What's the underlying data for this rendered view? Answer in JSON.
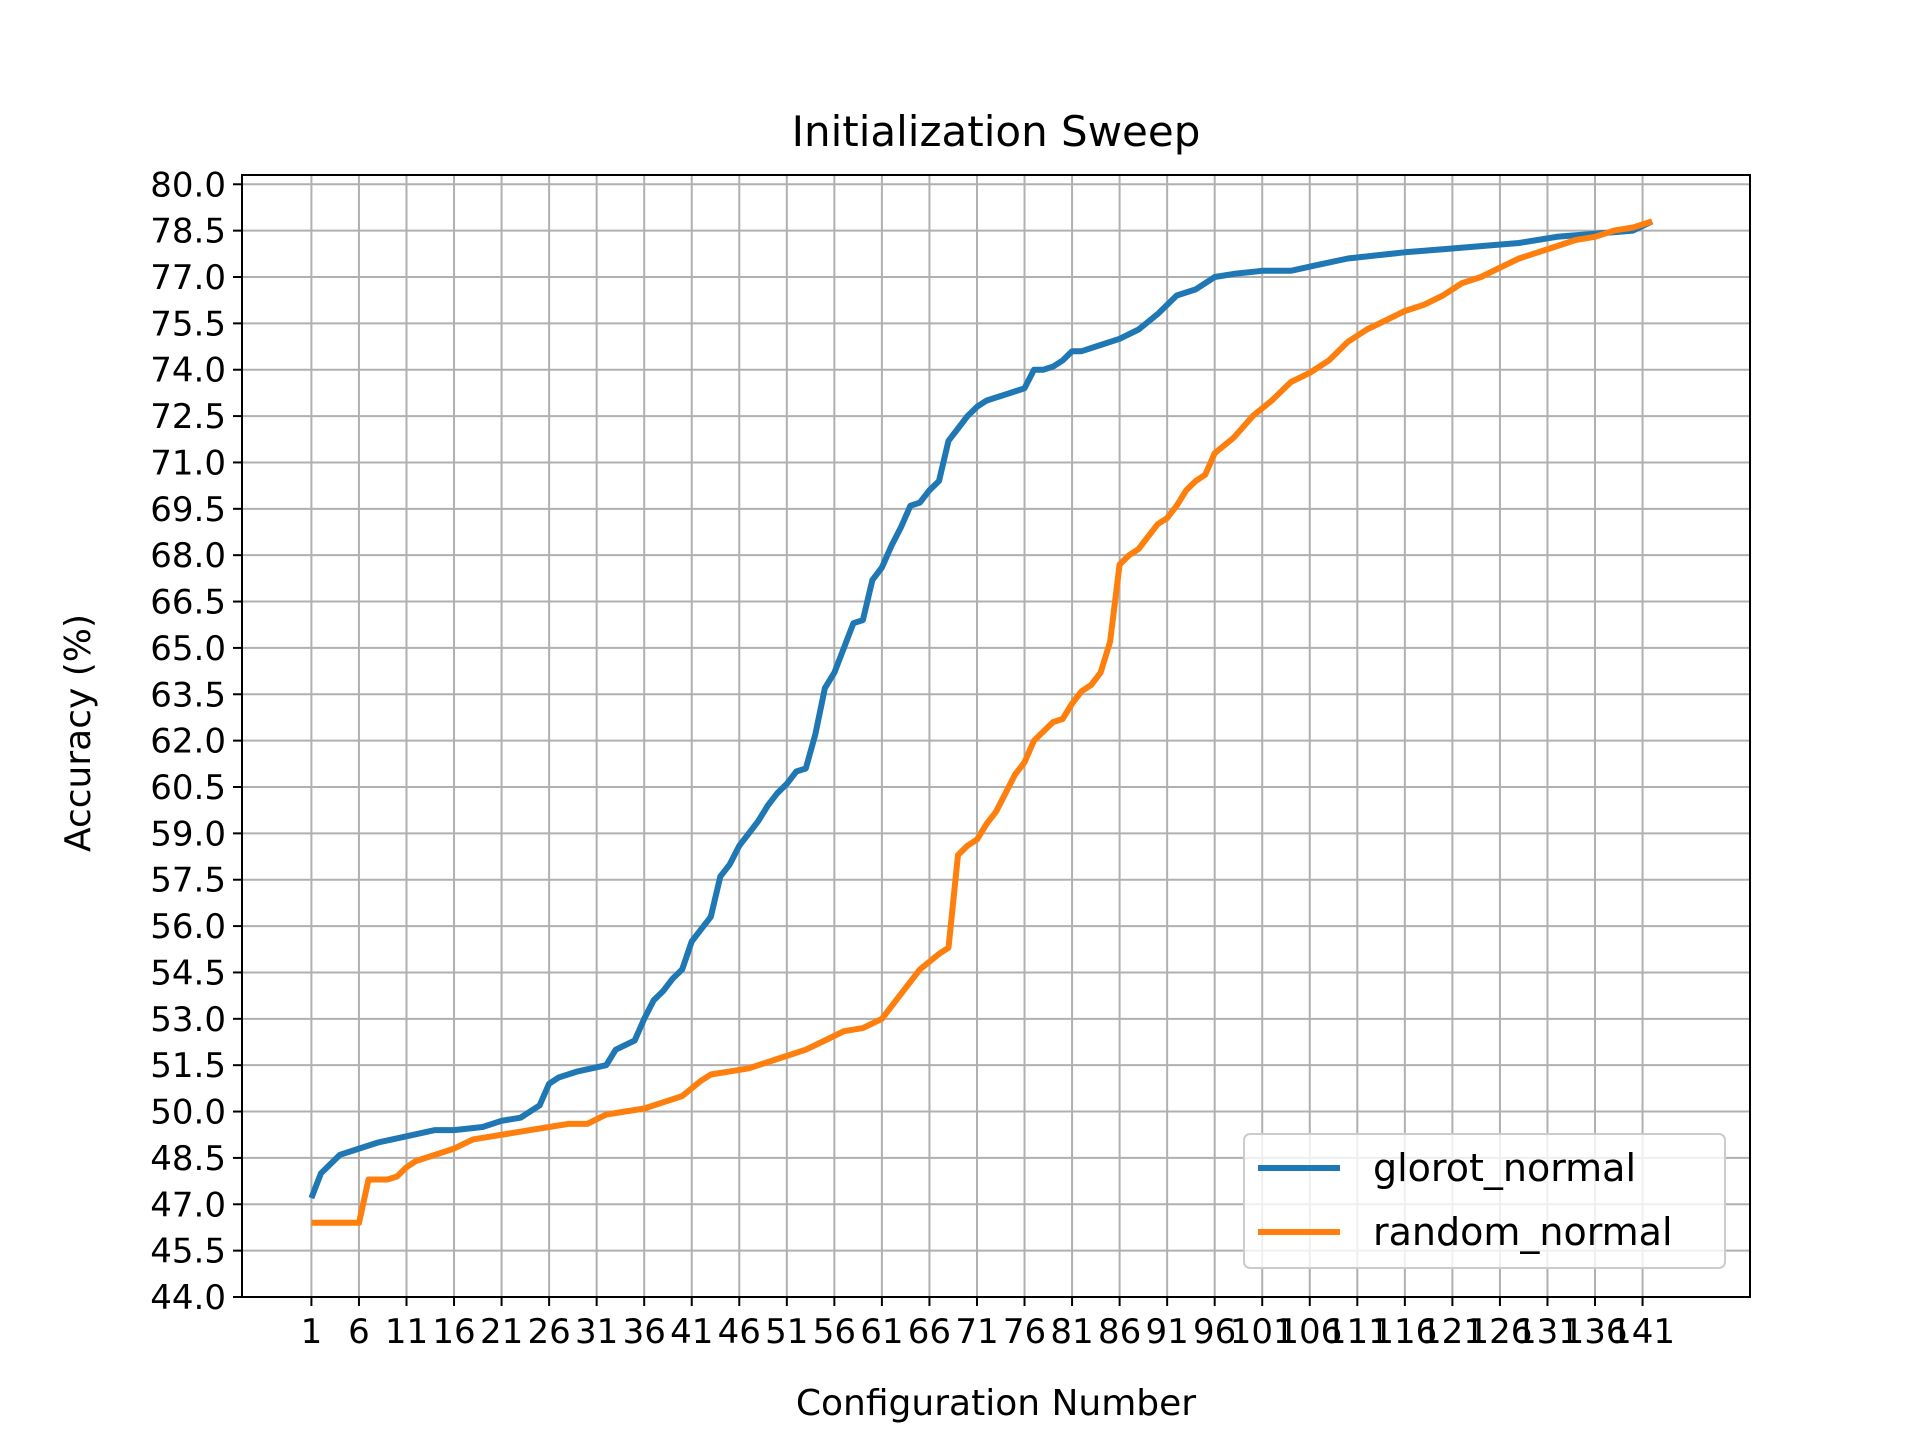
{
  "chart_data": {
    "type": "line",
    "title": "Initialization Sweep",
    "xlabel": "Configuration Number",
    "ylabel": "Accuracy (%)",
    "xlim": [
      -6.3,
      152.3
    ],
    "ylim": [
      44.0,
      80.3
    ],
    "x_tick_labels": [
      "1",
      "6",
      "11",
      "16",
      "21",
      "26",
      "31",
      "36",
      "41",
      "46",
      "51",
      "56",
      "61",
      "66",
      "71",
      "76",
      "81",
      "86",
      "91",
      "96",
      "101",
      "106",
      "111",
      "116",
      "121",
      "126",
      "131",
      "136",
      "141"
    ],
    "y_tick_labels": [
      "44.0",
      "45.5",
      "47.0",
      "48.5",
      "50.0",
      "51.5",
      "53.0",
      "54.5",
      "56.0",
      "57.5",
      "59.0",
      "60.5",
      "62.0",
      "63.5",
      "65.0",
      "66.5",
      "68.0",
      "69.5",
      "71.0",
      "72.5",
      "74.0",
      "75.5",
      "77.0",
      "78.5",
      "80.0"
    ],
    "grid": true,
    "legend_position": "lower right",
    "series": [
      {
        "name": "glorot_normal",
        "color": "#1f77b4",
        "x": [
          1,
          2,
          4,
          6,
          8,
          11,
          14,
          16,
          19,
          21,
          23,
          25,
          26,
          27,
          29,
          32,
          33,
          35,
          36,
          37,
          38,
          39,
          40,
          41,
          42,
          43,
          44,
          45,
          46,
          47,
          48,
          49,
          50,
          51,
          52,
          53,
          54,
          55,
          56,
          57,
          58,
          59,
          60,
          61,
          62,
          63,
          64,
          65,
          66,
          67,
          68,
          69,
          70,
          71,
          72,
          73,
          74,
          75,
          76,
          77,
          78,
          79,
          80,
          81,
          82,
          84,
          86,
          88,
          90,
          92,
          94,
          96,
          98,
          101,
          104,
          107,
          110,
          113,
          116,
          120,
          124,
          128,
          132,
          136,
          140,
          142
        ],
        "y": [
          47.2,
          48.0,
          48.6,
          48.8,
          49.0,
          49.2,
          49.4,
          49.4,
          49.5,
          49.7,
          49.8,
          50.2,
          50.9,
          51.1,
          51.3,
          51.5,
          52.0,
          52.3,
          53.0,
          53.6,
          53.9,
          54.3,
          54.6,
          55.5,
          55.9,
          56.3,
          57.6,
          58.0,
          58.6,
          59.0,
          59.4,
          59.9,
          60.3,
          60.6,
          61.0,
          61.1,
          62.2,
          63.7,
          64.2,
          65.0,
          65.8,
          65.9,
          67.2,
          67.6,
          68.3,
          68.9,
          69.6,
          69.7,
          70.1,
          70.4,
          71.7,
          72.1,
          72.5,
          72.8,
          73.0,
          73.1,
          73.2,
          73.3,
          73.4,
          74.0,
          74.0,
          74.1,
          74.3,
          74.6,
          74.6,
          74.8,
          75.0,
          75.3,
          75.8,
          76.4,
          76.6,
          77.0,
          77.1,
          77.2,
          77.2,
          77.4,
          77.6,
          77.7,
          77.8,
          77.9,
          78.0,
          78.1,
          78.3,
          78.4,
          78.5,
          78.8
        ]
      },
      {
        "name": "random_normal",
        "color": "#ff7f0e",
        "x": [
          1,
          3,
          6,
          7,
          9,
          10,
          11,
          12,
          14,
          16,
          18,
          20,
          22,
          24,
          26,
          28,
          30,
          32,
          34,
          36,
          38,
          40,
          42,
          43,
          45,
          47,
          49,
          51,
          53,
          55,
          57,
          59,
          61,
          63,
          65,
          67,
          68,
          69,
          70,
          71,
          72,
          73,
          74,
          75,
          76,
          77,
          78,
          79,
          80,
          81,
          82,
          83,
          84,
          85,
          86,
          87,
          88,
          89,
          90,
          91,
          92,
          93,
          94,
          95,
          96,
          98,
          100,
          102,
          104,
          106,
          108,
          110,
          112,
          114,
          116,
          118,
          120,
          122,
          124,
          126,
          128,
          130,
          132,
          134,
          136,
          138,
          140,
          142
        ],
        "y": [
          46.4,
          46.4,
          46.4,
          47.8,
          47.8,
          47.9,
          48.2,
          48.4,
          48.6,
          48.8,
          49.1,
          49.2,
          49.3,
          49.4,
          49.5,
          49.6,
          49.6,
          49.9,
          50.0,
          50.1,
          50.3,
          50.5,
          51.0,
          51.2,
          51.3,
          51.4,
          51.6,
          51.8,
          52.0,
          52.3,
          52.6,
          52.7,
          53.0,
          53.8,
          54.6,
          55.1,
          55.3,
          58.3,
          58.6,
          58.8,
          59.3,
          59.7,
          60.3,
          60.9,
          61.3,
          62.0,
          62.3,
          62.6,
          62.7,
          63.2,
          63.6,
          63.8,
          64.2,
          65.2,
          67.7,
          68.0,
          68.2,
          68.6,
          69.0,
          69.2,
          69.6,
          70.1,
          70.4,
          70.6,
          71.3,
          71.8,
          72.5,
          73.0,
          73.6,
          73.9,
          74.3,
          74.9,
          75.3,
          75.6,
          75.9,
          76.1,
          76.4,
          76.8,
          77.0,
          77.3,
          77.6,
          77.8,
          78.0,
          78.2,
          78.3,
          78.5,
          78.6,
          78.8
        ]
      }
    ]
  }
}
